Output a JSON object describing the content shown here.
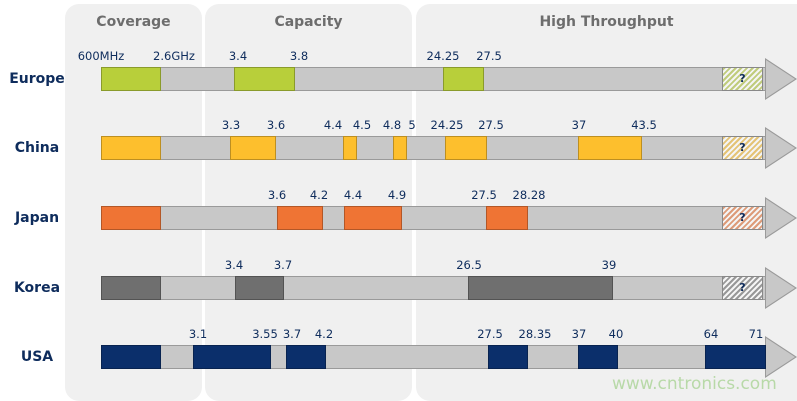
{
  "categories": [
    {
      "title": "Coverage"
    },
    {
      "title": "Capacity"
    },
    {
      "title": "High Throughput"
    }
  ],
  "unknown_marker": "?",
  "watermark": "www.cntronics.com",
  "rows": [
    {
      "country": "Europe",
      "color": "#b8cf3a",
      "labels": [
        "600MHz",
        "2.6GHz",
        "3.4",
        "3.8",
        "24.25",
        "27.5"
      ],
      "bands": [
        [
          "600MHz",
          "2.6GHz"
        ],
        [
          "3.4",
          "3.8"
        ],
        [
          "24.25",
          "27.5"
        ]
      ]
    },
    {
      "country": "China",
      "color": "#fdbf2d",
      "labels": [
        "3.3",
        "3.6",
        "4.4",
        "4.5",
        "4.8",
        "5",
        "24.25",
        "27.5",
        "37",
        "43.5"
      ],
      "bands": [
        [
          "600MHz",
          "2.6GHz"
        ],
        [
          "3.3",
          "3.6"
        ],
        [
          "4.4",
          "4.5"
        ],
        [
          "4.8",
          "5"
        ],
        [
          "24.25",
          "27.5"
        ],
        [
          "37",
          "43.5"
        ]
      ]
    },
    {
      "country": "Japan",
      "color": "#ef7434",
      "labels": [
        "3.6",
        "4.2",
        "4.4",
        "4.9",
        "27.5",
        "28.28"
      ],
      "bands": [
        [
          "600MHz",
          "2.6GHz"
        ],
        [
          "3.6",
          "4.2"
        ],
        [
          "4.4",
          "4.9"
        ],
        [
          "27.5",
          "28.28"
        ]
      ]
    },
    {
      "country": "Korea",
      "color": "#6f6f6f",
      "labels": [
        "3.4",
        "3.7",
        "26.5",
        "39"
      ],
      "bands": [
        [
          "600MHz",
          "2.6GHz"
        ],
        [
          "3.4",
          "3.7"
        ],
        [
          "26.5",
          "39"
        ]
      ]
    },
    {
      "country": "USA",
      "color": "#0b2f6b",
      "labels": [
        "3.1",
        "3.55",
        "3.7",
        "4.2",
        "27.5",
        "28.35",
        "37",
        "40",
        "64",
        "71"
      ],
      "bands": [
        [
          "600MHz",
          "2.6GHz"
        ],
        [
          "3.1",
          "3.55"
        ],
        [
          "3.7",
          "4.2"
        ],
        [
          "27.5",
          "28.35"
        ],
        [
          "37",
          "40"
        ],
        [
          "64",
          "71"
        ]
      ]
    }
  ]
}
